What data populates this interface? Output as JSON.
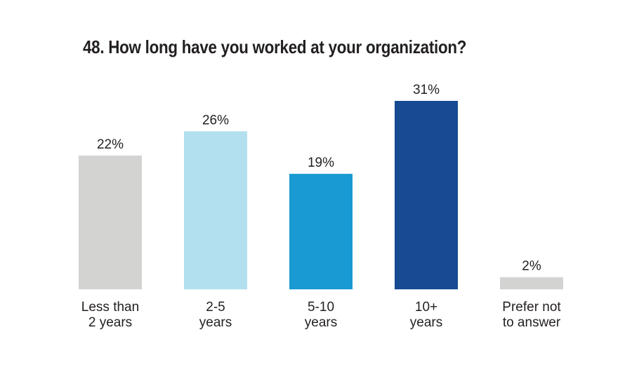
{
  "chart_data": {
    "type": "bar",
    "title": "48. How long have you worked at your organization?",
    "xlabel": "",
    "ylabel": "",
    "ylim": [
      0,
      31
    ],
    "grid": false,
    "categories": [
      [
        "Less than",
        "2 years"
      ],
      [
        "2-5",
        "years"
      ],
      [
        "5-10",
        "years"
      ],
      [
        "10+",
        "years"
      ],
      [
        "Prefer not",
        "to answer"
      ]
    ],
    "values": [
      22,
      26,
      19,
      31,
      2
    ],
    "data_labels": [
      "22%",
      "26%",
      "19%",
      "31%",
      "2%"
    ],
    "colors": [
      "#d3d3d2",
      "#b3e0ef",
      "#1a9ad3",
      "#164b93",
      "#d3d3d2"
    ]
  }
}
